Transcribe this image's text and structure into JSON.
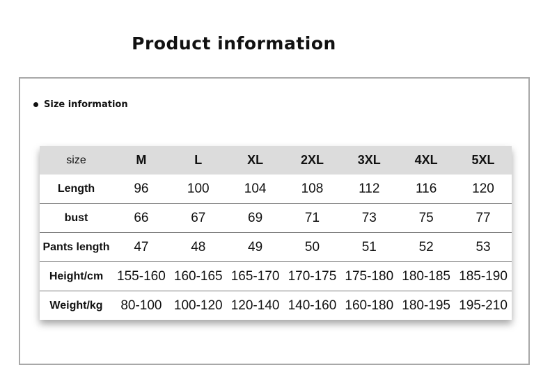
{
  "title": "Product information",
  "section_label": "Size information",
  "table": {
    "headers": [
      "size",
      "M",
      "L",
      "XL",
      "2XL",
      "3XL",
      "4XL",
      "5XL"
    ],
    "rows": [
      {
        "label": "Length",
        "values": [
          "96",
          "100",
          "104",
          "108",
          "112",
          "116",
          "120"
        ]
      },
      {
        "label": "bust",
        "values": [
          "66",
          "67",
          "69",
          "71",
          "73",
          "75",
          "77"
        ]
      },
      {
        "label": "Pants length",
        "values": [
          "47",
          "48",
          "49",
          "50",
          "51",
          "52",
          "53"
        ]
      },
      {
        "label": "Height/cm",
        "values": [
          "155-160",
          "160-165",
          "165-170",
          "170-175",
          "175-180",
          "180-185",
          "185-190"
        ]
      },
      {
        "label": "Weight/kg",
        "values": [
          "80-100",
          "100-120",
          "120-140",
          "140-160",
          "160-180",
          "180-195",
          "195-210"
        ]
      }
    ]
  },
  "colors": {
    "header_bg": "#dcdcdc",
    "frame_border": "#a8a8a8"
  }
}
